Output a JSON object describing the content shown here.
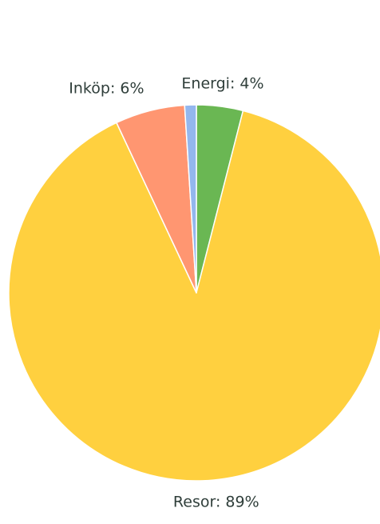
{
  "chart_data": {
    "type": "pie",
    "start_angle_deg": 90,
    "direction": "clockwise",
    "slices": [
      {
        "label": "Energi",
        "value": 4,
        "display": "Energi: 4%",
        "color": "#6ab753",
        "show_label": true
      },
      {
        "label": "Resor",
        "value": 89,
        "display": "Resor: 89%",
        "color": "#ffd03f",
        "show_label": true
      },
      {
        "label": "Inköp",
        "value": 6,
        "display": "Inköp: 6%",
        "color": "#ff9671",
        "show_label": true
      },
      {
        "label": "",
        "value": 1,
        "display": "",
        "color": "#93b7ee",
        "show_label": false
      }
    ]
  }
}
